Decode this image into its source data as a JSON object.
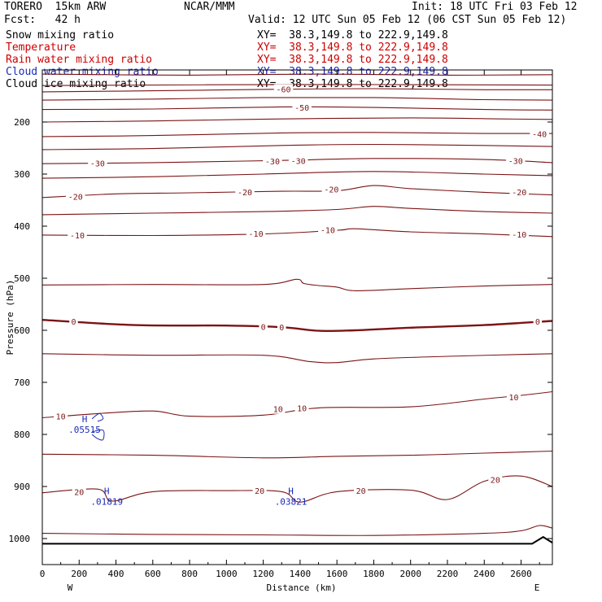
{
  "header": {
    "model": "TORERO  15km ARW",
    "fcst": "Fcst:   42 h",
    "center": "NCAR/MMM",
    "init": "Init: 18 UTC Fri 03 Feb 12",
    "valid": "Valid: 12 UTC Sun 05 Feb 12 (06 CST Sun 05 Feb 12)"
  },
  "legend": [
    {
      "name": "Snow mixing ratio",
      "xy": "XY=  38.3,149.8 to 222.9,149.8",
      "color": "#000000"
    },
    {
      "name": "Temperature",
      "xy": "XY=  38.3,149.8 to 222.9,149.8",
      "color": "#cc0000"
    },
    {
      "name": "Rain water mixing ratio",
      "xy": "XY=  38.3,149.8 to 222.9,149.8",
      "color": "#cc0000"
    },
    {
      "name": "Cloud water mixing ratio",
      "xy": "XY=  38.3,149.8 to 222.9,149.8",
      "color": "#1a2bb8"
    },
    {
      "name": "Cloud ice mixing ratio",
      "xy": "XY=  38.3,149.8 to 222.9,149.8",
      "color": "#000000"
    }
  ],
  "colors": {
    "isotherm": "#7a1416",
    "freezing": "#7a1416",
    "cloud_water": "#1a2bb8",
    "terrain": "#000000"
  },
  "chart_data": {
    "type": "contour",
    "title": "",
    "xlabel": "Distance (km)",
    "ylabel": "Pressure (hPa)",
    "xlim": [
      0,
      2770
    ],
    "ylim": [
      1050,
      100
    ],
    "x_ticks": [
      0,
      200,
      400,
      600,
      800,
      1000,
      1200,
      1400,
      1600,
      1800,
      2000,
      2200,
      2400,
      2600
    ],
    "y_ticks": [
      200,
      300,
      400,
      500,
      600,
      700,
      800,
      900,
      1000
    ],
    "end_labels": {
      "left": "W",
      "right": "E"
    },
    "isotherm_interval_C": 5,
    "isotherms": [
      {
        "T": -70,
        "pts": [
          [
            0,
            108
          ],
          [
            800,
            110
          ],
          [
            1500,
            108
          ],
          [
            2200,
            110
          ],
          [
            2770,
            109
          ]
        ]
      },
      {
        "T": -65,
        "pts": [
          [
            0,
            130
          ],
          [
            1400,
            128
          ],
          [
            2770,
            129
          ]
        ]
      },
      {
        "T": -60,
        "pts": [
          [
            0,
            142
          ],
          [
            600,
            140
          ],
          [
            1300,
            137
          ],
          [
            1800,
            136
          ],
          [
            2400,
            138
          ],
          [
            2770,
            138
          ]
        ]
      },
      {
        "T": -55,
        "pts": [
          [
            0,
            158
          ],
          [
            600,
            156
          ],
          [
            1200,
            153
          ],
          [
            1800,
            153
          ],
          [
            2400,
            157
          ],
          [
            2770,
            158
          ]
        ]
      },
      {
        "T": -50,
        "pts": [
          [
            0,
            176
          ],
          [
            600,
            175
          ],
          [
            1300,
            171
          ],
          [
            1800,
            172
          ],
          [
            2400,
            176
          ],
          [
            2770,
            177
          ]
        ]
      },
      {
        "T": -45,
        "pts": [
          [
            0,
            200
          ],
          [
            600,
            198
          ],
          [
            1300,
            194
          ],
          [
            2000,
            192
          ],
          [
            2500,
            194
          ],
          [
            2770,
            195
          ]
        ]
      },
      {
        "T": -40,
        "pts": [
          [
            0,
            228
          ],
          [
            600,
            226
          ],
          [
            1300,
            221
          ],
          [
            1800,
            220
          ],
          [
            2400,
            222
          ],
          [
            2770,
            222
          ]
        ]
      },
      {
        "T": -35,
        "pts": [
          [
            0,
            253
          ],
          [
            600,
            251
          ],
          [
            1300,
            245
          ],
          [
            1800,
            243
          ],
          [
            2400,
            245
          ],
          [
            2770,
            247
          ]
        ]
      },
      {
        "T": -30,
        "pts": [
          [
            0,
            280
          ],
          [
            600,
            278
          ],
          [
            1100,
            275
          ],
          [
            1400,
            273
          ],
          [
            1800,
            270
          ],
          [
            2400,
            272
          ],
          [
            2770,
            278
          ]
        ]
      },
      {
        "T": -25,
        "pts": [
          [
            0,
            308
          ],
          [
            600,
            305
          ],
          [
            1200,
            300
          ],
          [
            1800,
            295
          ],
          [
            2400,
            300
          ],
          [
            2770,
            303
          ]
        ]
      },
      {
        "T": -20,
        "pts": [
          [
            0,
            345
          ],
          [
            400,
            338
          ],
          [
            800,
            336
          ],
          [
            1300,
            333
          ],
          [
            1600,
            332
          ],
          [
            1800,
            322
          ],
          [
            2000,
            328
          ],
          [
            2400,
            335
          ],
          [
            2770,
            340
          ]
        ]
      },
      {
        "T": -15,
        "pts": [
          [
            0,
            378
          ],
          [
            600,
            375
          ],
          [
            1200,
            372
          ],
          [
            1600,
            368
          ],
          [
            1800,
            362
          ],
          [
            2000,
            366
          ],
          [
            2400,
            372
          ],
          [
            2770,
            375
          ]
        ]
      },
      {
        "T": -10,
        "pts": [
          [
            0,
            417
          ],
          [
            600,
            418
          ],
          [
            1200,
            415
          ],
          [
            1600,
            408
          ],
          [
            1700,
            405
          ],
          [
            2000,
            411
          ],
          [
            2400,
            415
          ],
          [
            2770,
            420
          ]
        ]
      },
      {
        "T": -5,
        "pts": [
          [
            0,
            513
          ],
          [
            600,
            512
          ],
          [
            1200,
            512
          ],
          [
            1380,
            502
          ],
          [
            1420,
            510
          ],
          [
            1500,
            514
          ],
          [
            1600,
            517
          ],
          [
            1700,
            524
          ],
          [
            2000,
            520
          ],
          [
            2400,
            515
          ],
          [
            2770,
            512
          ]
        ]
      },
      {
        "T": 0,
        "pts": [
          [
            0,
            580
          ],
          [
            500,
            590
          ],
          [
            1000,
            591
          ],
          [
            1300,
            594
          ],
          [
            1500,
            601
          ],
          [
            1700,
            600
          ],
          [
            2000,
            595
          ],
          [
            2400,
            590
          ],
          [
            2770,
            582
          ]
        ]
      },
      {
        "T": 5,
        "pts": [
          [
            0,
            645
          ],
          [
            600,
            648
          ],
          [
            1200,
            648
          ],
          [
            1450,
            660
          ],
          [
            1600,
            662
          ],
          [
            1800,
            655
          ],
          [
            2200,
            650
          ],
          [
            2770,
            645
          ]
        ]
      },
      {
        "T": 10,
        "pts": [
          [
            0,
            768
          ],
          [
            300,
            760
          ],
          [
            600,
            755
          ],
          [
            800,
            765
          ],
          [
            1200,
            763
          ],
          [
            1500,
            749
          ],
          [
            2000,
            747
          ],
          [
            2400,
            732
          ],
          [
            2600,
            725
          ],
          [
            2770,
            718
          ]
        ]
      },
      {
        "T": 15,
        "pts": [
          [
            0,
            838
          ],
          [
            600,
            840
          ],
          [
            1200,
            845
          ],
          [
            1600,
            842
          ],
          [
            2000,
            840
          ],
          [
            2400,
            836
          ],
          [
            2770,
            832
          ]
        ]
      },
      {
        "T": 20,
        "pts": [
          [
            0,
            912
          ],
          [
            300,
            905
          ],
          [
            380,
            928
          ],
          [
            600,
            910
          ],
          [
            1000,
            908
          ],
          [
            1300,
            910
          ],
          [
            1400,
            930
          ],
          [
            1600,
            910
          ],
          [
            2000,
            907
          ],
          [
            2200,
            925
          ],
          [
            2400,
            890
          ],
          [
            2600,
            880
          ],
          [
            2770,
            900
          ]
        ]
      },
      {
        "T": 25,
        "pts": [
          [
            0,
            990
          ],
          [
            600,
            992
          ],
          [
            1200,
            993
          ],
          [
            1800,
            994
          ],
          [
            2400,
            990
          ],
          [
            2600,
            985
          ],
          [
            2700,
            975
          ],
          [
            2770,
            980
          ]
        ]
      }
    ],
    "isotherm_labels": [
      {
        "T": -60,
        "x": 1310,
        "p": 137
      },
      {
        "T": -50,
        "x": 1410,
        "p": 172
      },
      {
        "T": -40,
        "x": 2700,
        "p": 223
      },
      {
        "T": -30,
        "x": 300,
        "p": 279
      },
      {
        "T": -30,
        "x": 1250,
        "p": 275
      },
      {
        "T": -30,
        "x": 1390,
        "p": 274
      },
      {
        "T": -30,
        "x": 2570,
        "p": 274
      },
      {
        "T": -20,
        "x": 180,
        "p": 343
      },
      {
        "T": -20,
        "x": 1100,
        "p": 334
      },
      {
        "T": -20,
        "x": 1570,
        "p": 329
      },
      {
        "T": -20,
        "x": 2590,
        "p": 334
      },
      {
        "T": -10,
        "x": 190,
        "p": 417
      },
      {
        "T": -10,
        "x": 1160,
        "p": 414
      },
      {
        "T": -10,
        "x": 1550,
        "p": 407
      },
      {
        "T": -10,
        "x": 2590,
        "p": 416
      },
      {
        "T": 0,
        "x": 170,
        "p": 583
      },
      {
        "T": 0,
        "x": 1200,
        "p": 593
      },
      {
        "T": 0,
        "x": 1300,
        "p": 594
      },
      {
        "T": 0,
        "x": 2690,
        "p": 583
      },
      {
        "T": 10,
        "x": 100,
        "p": 765
      },
      {
        "T": 10,
        "x": 1280,
        "p": 751
      },
      {
        "T": 10,
        "x": 1410,
        "p": 749
      },
      {
        "T": 10,
        "x": 2560,
        "p": 728
      },
      {
        "T": 20,
        "x": 200,
        "p": 910
      },
      {
        "T": 20,
        "x": 1180,
        "p": 908
      },
      {
        "T": 20,
        "x": 1730,
        "p": 908
      },
      {
        "T": 20,
        "x": 2460,
        "p": 887
      }
    ],
    "cloud_water": {
      "contours": [
        {
          "pts": [
            [
              270,
              795
            ],
            [
              330,
              792
            ],
            [
              330,
              810
            ],
            [
              300,
              808
            ],
            [
              270,
              800
            ]
          ]
        },
        {
          "pts": [
            [
              270,
              770
            ],
            [
              310,
              760
            ],
            [
              330,
              770
            ],
            [
              300,
              775
            ]
          ]
        }
      ],
      "highs": [
        {
          "x": 230,
          "p": 780,
          "value": ".05515"
        },
        {
          "x": 350,
          "p": 918,
          "value": ".01819"
        },
        {
          "x": 1350,
          "p": 918,
          "value": ".03821"
        }
      ]
    },
    "terrain": {
      "pts": [
        [
          0,
          1010
        ],
        [
          2660,
          1010
        ],
        [
          2720,
          997
        ],
        [
          2770,
          1008
        ]
      ]
    }
  }
}
